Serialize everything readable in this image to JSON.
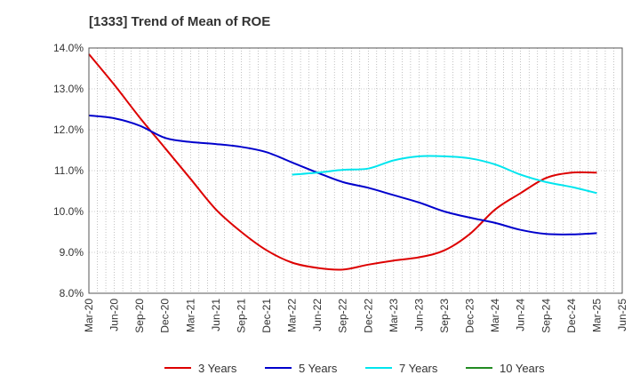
{
  "chart_data": {
    "type": "line",
    "title": "[1333]  Trend of Mean of ROE",
    "xlabel": "",
    "ylabel": "",
    "x": [
      "Mar-20",
      "Jun-20",
      "Sep-20",
      "Dec-20",
      "Mar-21",
      "Jun-21",
      "Sep-21",
      "Dec-21",
      "Mar-22",
      "Jun-22",
      "Sep-22",
      "Dec-22",
      "Mar-23",
      "Jun-23",
      "Sep-23",
      "Dec-23",
      "Mar-24",
      "Jun-24",
      "Sep-24",
      "Dec-24",
      "Mar-25",
      "Jun-25"
    ],
    "y_ticks": [
      "8.0%",
      "9.0%",
      "10.0%",
      "11.0%",
      "12.0%",
      "13.0%",
      "14.0%"
    ],
    "ylim": [
      8.0,
      14.0
    ],
    "grid": true,
    "legend_position": "bottom",
    "series": [
      {
        "name": "3 Years",
        "color": "#dd0000",
        "values": [
          13.85,
          13.1,
          12.3,
          11.55,
          10.8,
          10.05,
          9.5,
          9.05,
          8.75,
          8.62,
          8.58,
          8.7,
          8.8,
          8.88,
          9.05,
          9.45,
          10.05,
          10.45,
          10.82,
          10.95,
          10.95,
          null
        ]
      },
      {
        "name": "5 Years",
        "color": "#0000cc",
        "values": [
          12.35,
          12.28,
          12.1,
          11.8,
          11.7,
          11.65,
          11.58,
          11.45,
          11.2,
          10.95,
          10.72,
          10.58,
          10.4,
          10.22,
          10.0,
          9.85,
          9.72,
          9.55,
          9.45,
          9.44,
          9.47,
          null
        ]
      },
      {
        "name": "7 Years",
        "color": "#00e5ee",
        "values": [
          null,
          null,
          null,
          null,
          null,
          null,
          null,
          null,
          10.9,
          10.95,
          11.02,
          11.05,
          11.25,
          11.35,
          11.35,
          11.3,
          11.15,
          10.9,
          10.72,
          10.6,
          10.45,
          null
        ]
      },
      {
        "name": "10 Years",
        "color": "#228b22",
        "values": [
          null,
          null,
          null,
          null,
          null,
          null,
          null,
          null,
          null,
          null,
          null,
          null,
          null,
          null,
          null,
          null,
          null,
          null,
          null,
          null,
          null,
          null
        ]
      }
    ]
  }
}
